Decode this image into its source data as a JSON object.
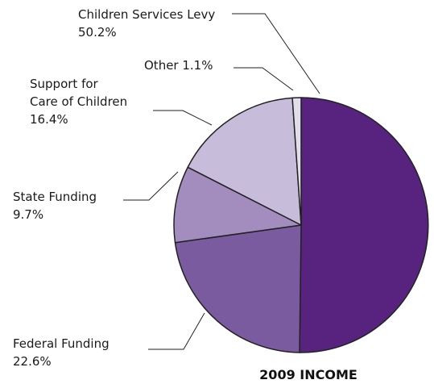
{
  "chart_data": {
    "type": "pie",
    "title": "2009 INCOME",
    "slices": [
      {
        "label": "Children Services Levy",
        "value": 50.2,
        "value_text": "50.2%",
        "color": "#57237f"
      },
      {
        "label": "Federal Funding",
        "value": 22.6,
        "value_text": "22.6%",
        "color": "#7b5b9f"
      },
      {
        "label": "State Funding",
        "value": 9.7,
        "value_text": "9.7%",
        "color": "#a38dbf"
      },
      {
        "label": "Support for Care of Children",
        "label_lines": [
          "Support for",
          "Care of Children"
        ],
        "value": 16.4,
        "value_text": "16.4%",
        "color": "#c8bcdb"
      },
      {
        "label": "Other",
        "value": 1.1,
        "value_text": "1.1%",
        "color": "#e2dde9"
      }
    ],
    "start": "top",
    "direction": "clockwise",
    "slice_border_color": "#222222"
  }
}
